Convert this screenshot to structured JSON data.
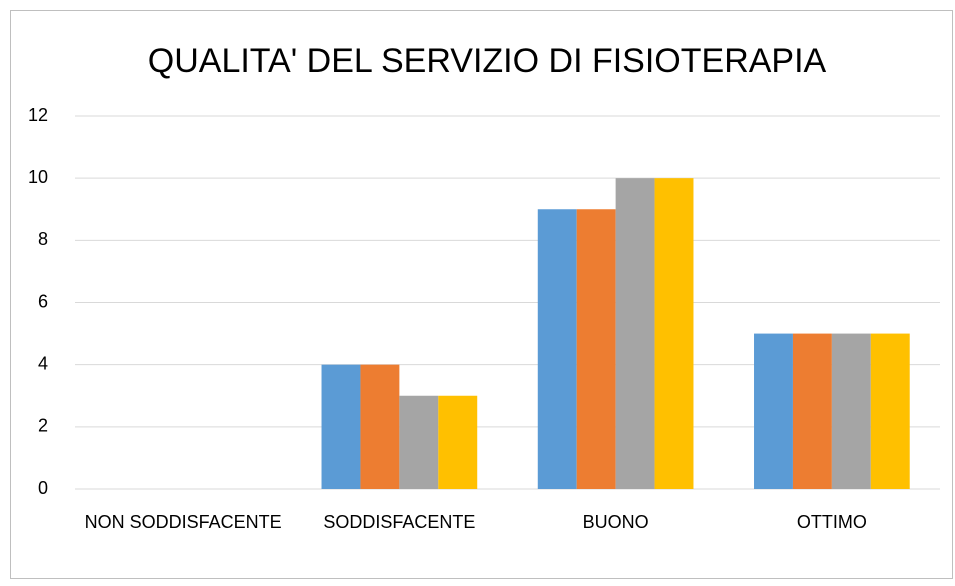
{
  "chart_data": {
    "type": "bar",
    "title": "QUALITA' DEL SERVIZIO DI FISIOTERAPIA",
    "categories": [
      "NON SODDISFACENTE",
      "SODDISFACENTE",
      "BUONO",
      "OTTIMO"
    ],
    "series": [
      {
        "color": "#5b9bd5",
        "values": [
          0,
          4,
          9,
          5
        ]
      },
      {
        "color": "#ed7d31",
        "values": [
          0,
          4,
          9,
          5
        ]
      },
      {
        "color": "#a5a5a5",
        "values": [
          0,
          3,
          10,
          5
        ]
      },
      {
        "color": "#ffc000",
        "values": [
          0,
          3,
          10,
          5
        ]
      }
    ],
    "ylim": [
      0,
      12
    ],
    "yticks": [
      0,
      2,
      4,
      6,
      8,
      10,
      12
    ],
    "grid": true
  }
}
